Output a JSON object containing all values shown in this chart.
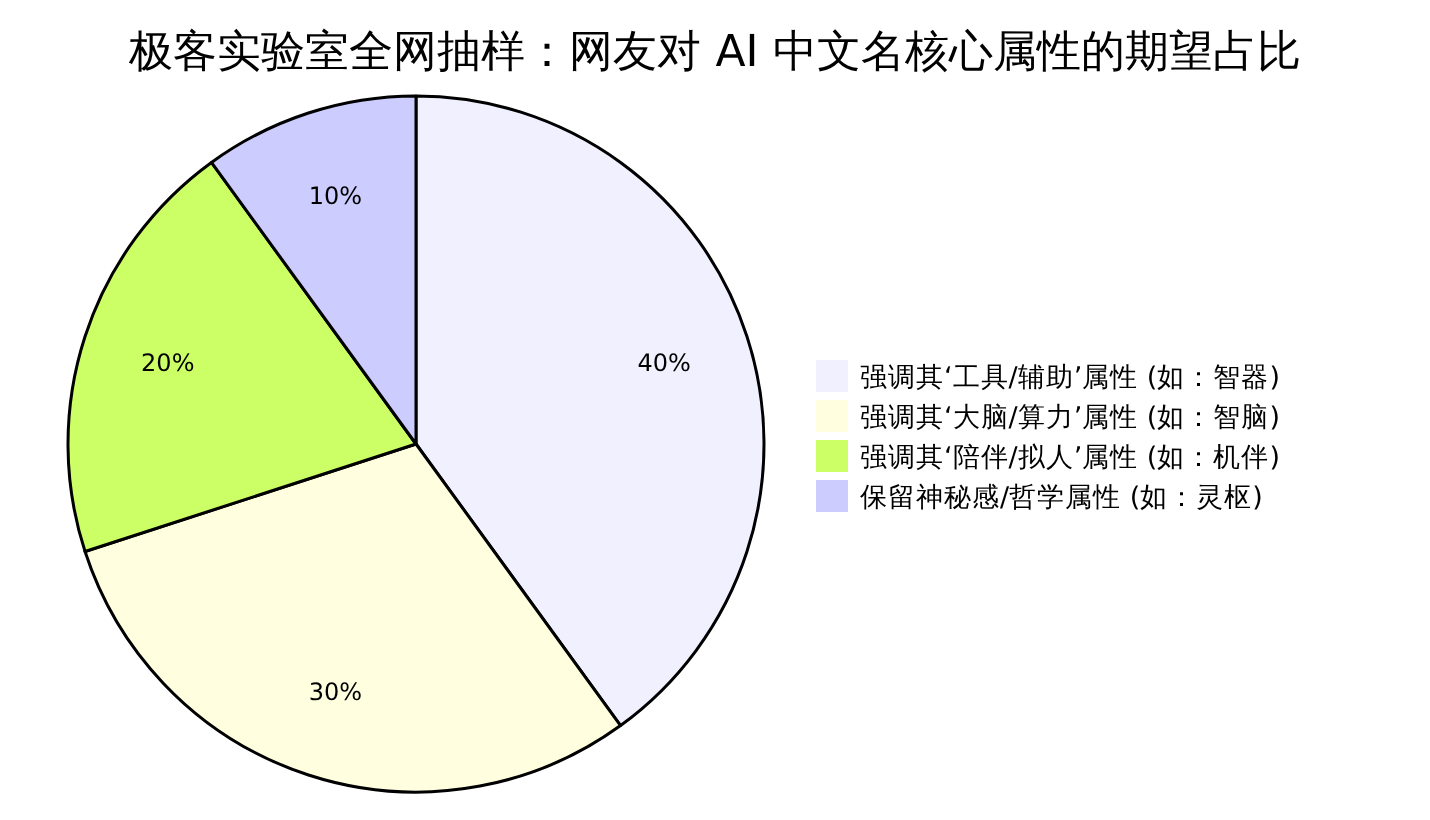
{
  "chart_data": {
    "type": "pie",
    "title": "极客实验室全网抽样：网友对 AI 中文名核心属性的期望占比",
    "categories": [
      "强调其‘工具/辅助’属性 (如：智器)",
      "强调其‘大脑/算力’属性 (如：智脑)",
      "强调其‘陪伴/拟人’属性 (如：机伴)",
      "保留神秘感/哲学属性 (如：灵枢)"
    ],
    "values": [
      40,
      30,
      20,
      10
    ],
    "colors": [
      "#f0f0ff",
      "#ffffe0",
      "#ccff66",
      "#ccccff"
    ],
    "value_labels": [
      "40%",
      "30%",
      "20%",
      "10%"
    ],
    "legend": "right"
  }
}
